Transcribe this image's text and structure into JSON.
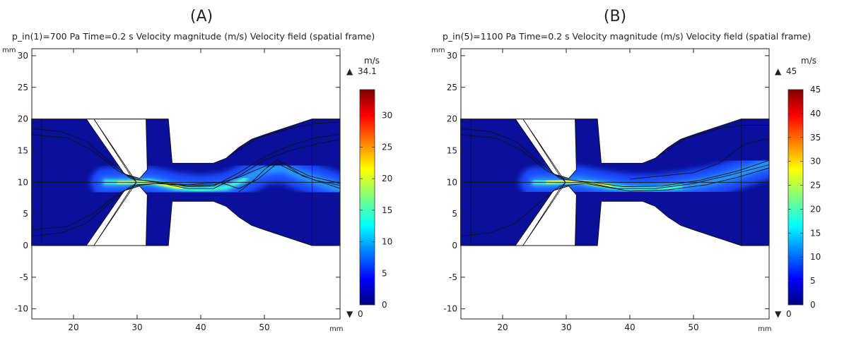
{
  "panels": [
    {
      "label": "(A)",
      "title": "p_in(1)=700 Pa Time=0.2 s  Velocity magnitude (m/s)  Velocity field (spatial frame)",
      "axis_unit": "mm",
      "y_ticks": [
        "30",
        "25",
        "20",
        "15",
        "10",
        "5",
        "0",
        "-5",
        "-10"
      ],
      "x_ticks": [
        "20",
        "30",
        "40",
        "50"
      ],
      "colorbar": {
        "unit": "m/s",
        "max_label": "34.1",
        "min_label": "0",
        "ticks": [
          "30",
          "25",
          "20",
          "15",
          "10",
          "5",
          "0"
        ]
      }
    },
    {
      "label": "(B)",
      "title": "p_in(5)=1100 Pa Time=0.2 s  Velocity magnitude (m/s)  Velocity field (spatial frame)",
      "axis_unit": "mm",
      "y_ticks": [
        "30",
        "25",
        "20",
        "15",
        "10",
        "5",
        "0",
        "-5",
        "-10"
      ],
      "x_ticks": [
        "20",
        "30",
        "40",
        "50"
      ],
      "colorbar": {
        "unit": "m/s",
        "max_label": "45",
        "min_label": "0",
        "ticks": [
          "45",
          "40",
          "35",
          "30",
          "25",
          "20",
          "15",
          "10",
          "5",
          "0"
        ]
      }
    }
  ],
  "chart_data": [
    {
      "type": "heatmap",
      "title": "p_in(1)=700 Pa Time=0.2 s  Velocity magnitude (m/s)  Velocity field (spatial frame)",
      "xlabel": "mm",
      "ylabel": "mm",
      "xlim": [
        13.4,
        62
      ],
      "ylim": [
        -11.5,
        31
      ],
      "colormap": "jet",
      "color_range": [
        0,
        34.1
      ],
      "color_unit": "m/s",
      "peak_region": "jet from valve throat at y≈10 mm, x≈27–33 mm, deflecting upward near x≈50 mm"
    },
    {
      "type": "heatmap",
      "title": "p_in(5)=1100 Pa Time=0.2 s  Velocity magnitude (m/s)  Velocity field (spatial frame)",
      "xlabel": "mm",
      "ylabel": "mm",
      "xlim": [
        13.4,
        62
      ],
      "ylim": [
        -11.5,
        31
      ],
      "colormap": "jet",
      "color_range": [
        0,
        45
      ],
      "color_unit": "m/s",
      "peak_region": "jet from valve throat at y≈10 mm, x≈27–33 mm, extending to outlet rising to y≈13 mm"
    }
  ]
}
